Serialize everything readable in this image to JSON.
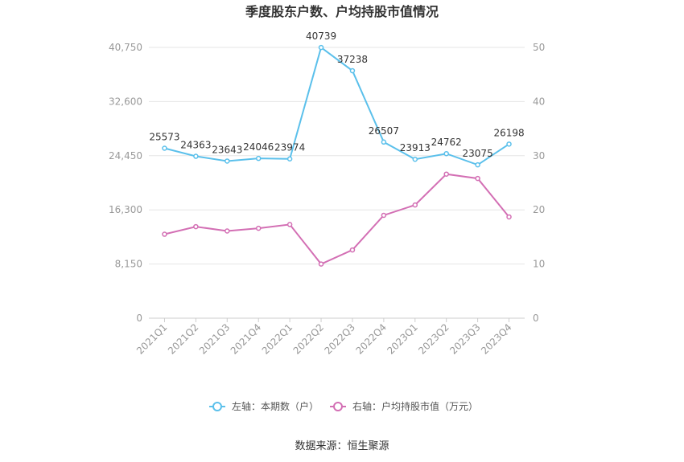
{
  "chart_data": {
    "type": "line",
    "title": "季度股东户数、户均持股市值情况",
    "categories": [
      "2021Q1",
      "2021Q2",
      "2021Q3",
      "2021Q4",
      "2022Q1",
      "2022Q2",
      "2022Q3",
      "2022Q4",
      "2023Q1",
      "2023Q2",
      "2023Q3",
      "2023Q4"
    ],
    "left_axis": {
      "min": 0,
      "max": 40750,
      "ticks": [
        "0",
        "8,150",
        "16,300",
        "24,450",
        "32,600",
        "40,750"
      ]
    },
    "right_axis": {
      "min": 0,
      "max": 50,
      "ticks": [
        "0",
        "10",
        "20",
        "30",
        "40",
        "50"
      ]
    },
    "series": [
      {
        "name": "左轴：本期数（户）",
        "axis": "left",
        "color": "#5bc0eb",
        "values": [
          25573,
          24363,
          23643,
          24046,
          23974,
          40739,
          37238,
          26507,
          23913,
          24762,
          23075,
          26198
        ],
        "labels": [
          "25573",
          "24363",
          "23643",
          "24046",
          "23974",
          "40739",
          "37238",
          "26507",
          "23913",
          "24762",
          "23075",
          "26198"
        ]
      },
      {
        "name": "右轴：户均持股市值（万元）",
        "axis": "right",
        "color": "#d36fb4",
        "values": [
          15.5,
          16.9,
          16.1,
          16.6,
          17.3,
          10.0,
          12.6,
          19.0,
          20.9,
          26.6,
          25.8,
          18.7
        ]
      }
    ],
    "grid": true,
    "legend_position": "bottom",
    "source": "数据来源：恒生聚源"
  }
}
